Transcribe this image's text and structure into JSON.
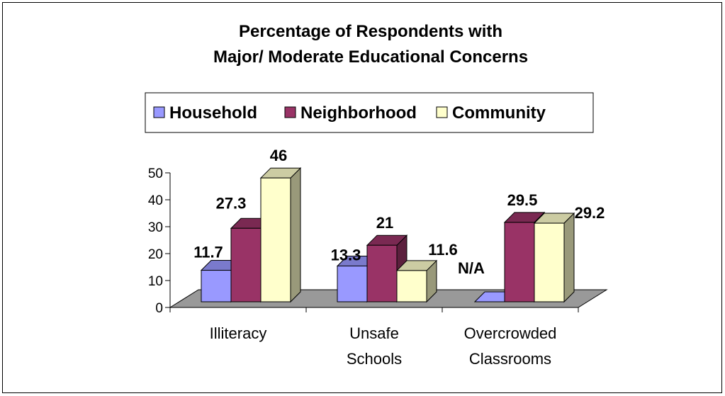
{
  "chart_data": {
    "type": "bar",
    "title_lines": [
      "Percentage of Respondents with",
      "Major/ Moderate Educational Concerns"
    ],
    "categories": [
      [
        "Illiteracy"
      ],
      [
        "Unsafe",
        "Schools"
      ],
      [
        "Overcrowded",
        "Classrooms"
      ]
    ],
    "series": [
      {
        "name": "Household",
        "values": [
          11.7,
          13.3,
          null
        ],
        "labels": [
          "11.7",
          "13.3",
          "N/A"
        ]
      },
      {
        "name": "Neighborhood",
        "values": [
          27.3,
          21,
          29.5
        ],
        "labels": [
          "27.3",
          "21",
          "29.5"
        ]
      },
      {
        "name": "Community",
        "values": [
          46,
          11.6,
          29.2
        ],
        "labels": [
          "46",
          "11.6",
          "29.2"
        ]
      }
    ],
    "yticks": [
      0,
      10,
      20,
      30,
      40,
      50
    ],
    "ylim": [
      0,
      50
    ],
    "legend_position": "top",
    "style": "3d-bar",
    "colors": {
      "Household": "#9999ff",
      "Neighborhood": "#993366",
      "Community": "#ffffcc",
      "floor": "#999999"
    }
  }
}
